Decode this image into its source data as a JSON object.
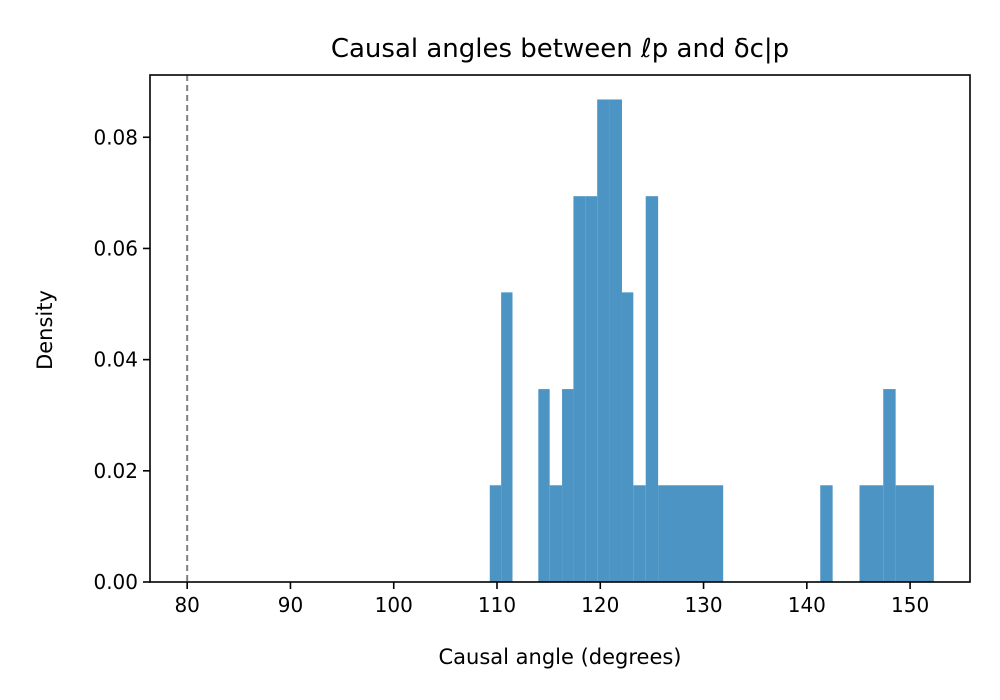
{
  "chart_data": {
    "type": "histogram",
    "title": "Causal angles between ℓp and δc|p",
    "xlabel": "Causal angle (degrees)",
    "ylabel": "Density",
    "xlim": [
      76.4,
      155.8
    ],
    "ylim": [
      0,
      0.0912
    ],
    "xticks": [
      80,
      90,
      100,
      110,
      120,
      130,
      140,
      150
    ],
    "xtick_labels": [
      "80",
      "90",
      "100",
      "110",
      "120",
      "130",
      "140",
      "150"
    ],
    "yticks": [
      0,
      0.02,
      0.04,
      0.06,
      0.08
    ],
    "ytick_labels": [
      "0.00",
      "0.02",
      "0.04",
      "0.06",
      "0.08"
    ],
    "reference_line": {
      "x": 80,
      "style": "dashed",
      "color": "#808080"
    },
    "bar_color": "#4c94c4",
    "bins": [
      {
        "x0": 109.3,
        "x1": 110.4,
        "density": 0.0174
      },
      {
        "x0": 110.4,
        "x1": 111.5,
        "density": 0.0521
      },
      {
        "x0": 114.0,
        "x1": 115.1,
        "density": 0.0347
      },
      {
        "x0": 115.1,
        "x1": 116.3,
        "density": 0.0174
      },
      {
        "x0": 116.3,
        "x1": 117.4,
        "density": 0.0347
      },
      {
        "x0": 117.4,
        "x1": 118.6,
        "density": 0.0694
      },
      {
        "x0": 118.6,
        "x1": 119.7,
        "density": 0.0694
      },
      {
        "x0": 119.7,
        "x1": 120.9,
        "density": 0.0868
      },
      {
        "x0": 120.9,
        "x1": 122.1,
        "density": 0.0868
      },
      {
        "x0": 122.1,
        "x1": 123.2,
        "density": 0.0521
      },
      {
        "x0": 123.2,
        "x1": 124.4,
        "density": 0.0174
      },
      {
        "x0": 124.4,
        "x1": 125.6,
        "density": 0.0694
      },
      {
        "x0": 125.6,
        "x1": 131.9,
        "density": 0.0174
      },
      {
        "x0": 141.3,
        "x1": 142.5,
        "density": 0.0174
      },
      {
        "x0": 145.1,
        "x1": 147.4,
        "density": 0.0174
      },
      {
        "x0": 147.4,
        "x1": 148.6,
        "density": 0.0347
      },
      {
        "x0": 148.6,
        "x1": 152.3,
        "density": 0.0174
      }
    ]
  }
}
